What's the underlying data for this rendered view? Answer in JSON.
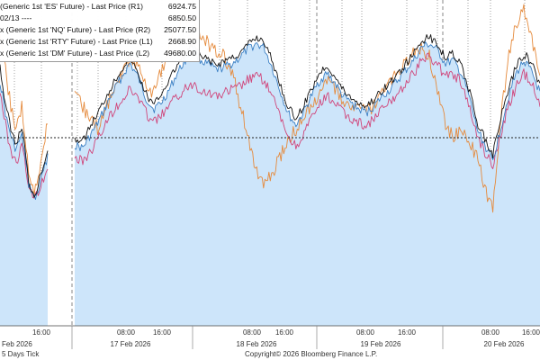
{
  "chart_data": {
    "type": "line",
    "legend": {
      "placement": "top-left",
      "entries": [
        {
          "label": "(Generic 1st 'ES' Future) - Last Price (R1)",
          "value": "6924.75",
          "color": "#111111"
        },
        {
          "label": "02/13 ----",
          "value": "6850.50",
          "color": "#111111"
        },
        {
          "label": "x (Generic 1st 'NQ' Future) - Last Price (R2)",
          "value": "25077.50",
          "color": "#3a7fc4"
        },
        {
          "label": "x (Generic 1st 'RTY' Future) - Last Price (L1)",
          "value": "2668.90",
          "color": "#d0457a"
        },
        {
          "label": "x (Generic 1st 'DM' Future) - Last Price (L2)",
          "value": "49680.00",
          "color": "#e58a3c"
        }
      ]
    },
    "x_tick_labels": [
      "16:00",
      "08:00",
      "16:00",
      "08:00",
      "16:00",
      "08:00",
      "16:00",
      "08:00",
      "16:00"
    ],
    "date_labels": [
      "Feb 2026",
      "17 Feb 2026",
      "18 Feb 2026",
      "19 Feb 2026",
      "20 Feb 2026"
    ],
    "reference_line": {
      "label": "02/13",
      "value": 6850.5,
      "style": "dashed"
    },
    "series": [
      {
        "key": "es",
        "color": "#111111",
        "role": "line",
        "values": [
          6895,
          6880,
          6868,
          6860,
          6852,
          6846,
          6852,
          6858,
          6840,
          6824,
          6818,
          6815,
          6822,
          6830,
          6836,
          6844,
          6850,
          6848,
          6858,
          6866,
          6876,
          6885,
          6893,
          6900,
          6890,
          6878,
          6870,
          6878,
          6886,
          6895,
          6902,
          6908,
          6900,
          6898,
          6895,
          6898,
          6900,
          6902,
          6908,
          6912,
          6910,
          6898,
          6884,
          6870,
          6862,
          6870,
          6880,
          6890,
          6895,
          6888,
          6880,
          6875,
          6872,
          6870,
          6874,
          6880,
          6884,
          6890,
          6896,
          6902,
          6910,
          6912,
          6908,
          6900,
          6902,
          6895,
          6880,
          6860,
          6850,
          6840,
          6862,
          6880,
          6895,
          6902,
          6896,
          6882
        ]
      },
      {
        "key": "nq",
        "color": "#3a7fc4",
        "role": "area",
        "values": [
          6885,
          6875,
          6862,
          6855,
          6848,
          6843,
          6848,
          6852,
          6836,
          6822,
          6818,
          6812,
          6818,
          6825,
          6832,
          6840,
          6846,
          6844,
          6852,
          6860,
          6870,
          6880,
          6888,
          6896,
          6888,
          6875,
          6868,
          6872,
          6880,
          6890,
          6898,
          6905,
          6898,
          6895,
          6892,
          6894,
          6896,
          6900,
          6905,
          6908,
          6906,
          6894,
          6880,
          6866,
          6858,
          6866,
          6876,
          6885,
          6890,
          6884,
          6876,
          6872,
          6868,
          6866,
          6870,
          6876,
          6880,
          6886,
          6892,
          6898,
          6906,
          6908,
          6904,
          6896,
          6898,
          6890,
          6876,
          6856,
          6846,
          6836,
          6856,
          6876,
          6890,
          6898,
          6890,
          6878
        ]
      },
      {
        "key": "rty",
        "color": "#d0457a",
        "role": "line",
        "values": [
          6878,
          6868,
          6855,
          6845,
          6840,
          6835,
          6840,
          6846,
          6832,
          6822,
          6816,
          6813,
          6818,
          6822,
          6828,
          6833,
          6838,
          6836,
          6842,
          6850,
          6860,
          6868,
          6874,
          6880,
          6876,
          6866,
          6860,
          6864,
          6870,
          6876,
          6880,
          6884,
          6880,
          6878,
          6876,
          6878,
          6880,
          6882,
          6886,
          6888,
          6886,
          6876,
          6864,
          6852,
          6845,
          6852,
          6862,
          6870,
          6876,
          6872,
          6866,
          6862,
          6860,
          6858,
          6862,
          6868,
          6872,
          6878,
          6884,
          6890,
          6898,
          6900,
          6896,
          6888,
          6890,
          6884,
          6870,
          6852,
          6842,
          6834,
          6852,
          6870,
          6882,
          6890,
          6884,
          6872
        ]
      },
      {
        "key": "dm",
        "color": "#e58a3c",
        "role": "line",
        "values": [
          6910,
          6898,
          6888,
          6875,
          6865,
          6855,
          6862,
          6870,
          6848,
          6830,
          6820,
          6818,
          6826,
          6836,
          6848,
          6862,
          6875,
          6870,
          6862,
          6856,
          6870,
          6880,
          6890,
          6900,
          6895,
          6883,
          6878,
          6892,
          6905,
          6918,
          6925,
          6920,
          6914,
          6908,
          6904,
          6900,
          6890,
          6870,
          6852,
          6830,
          6820,
          6828,
          6838,
          6848,
          6855,
          6862,
          6870,
          6878,
          6885,
          6880,
          6872,
          6870,
          6868,
          6866,
          6870,
          6878,
          6884,
          6890,
          6896,
          6902,
          6906,
          6900,
          6880,
          6860,
          6850,
          6855,
          6848,
          6838,
          6820,
          6806,
          6860,
          6900,
          6920,
          6930,
          6910,
          6890
        ]
      }
    ]
  },
  "footer": {
    "left": "5 Days Tick",
    "right": "Copyright© 2026 Bloomberg Finance L.P."
  }
}
